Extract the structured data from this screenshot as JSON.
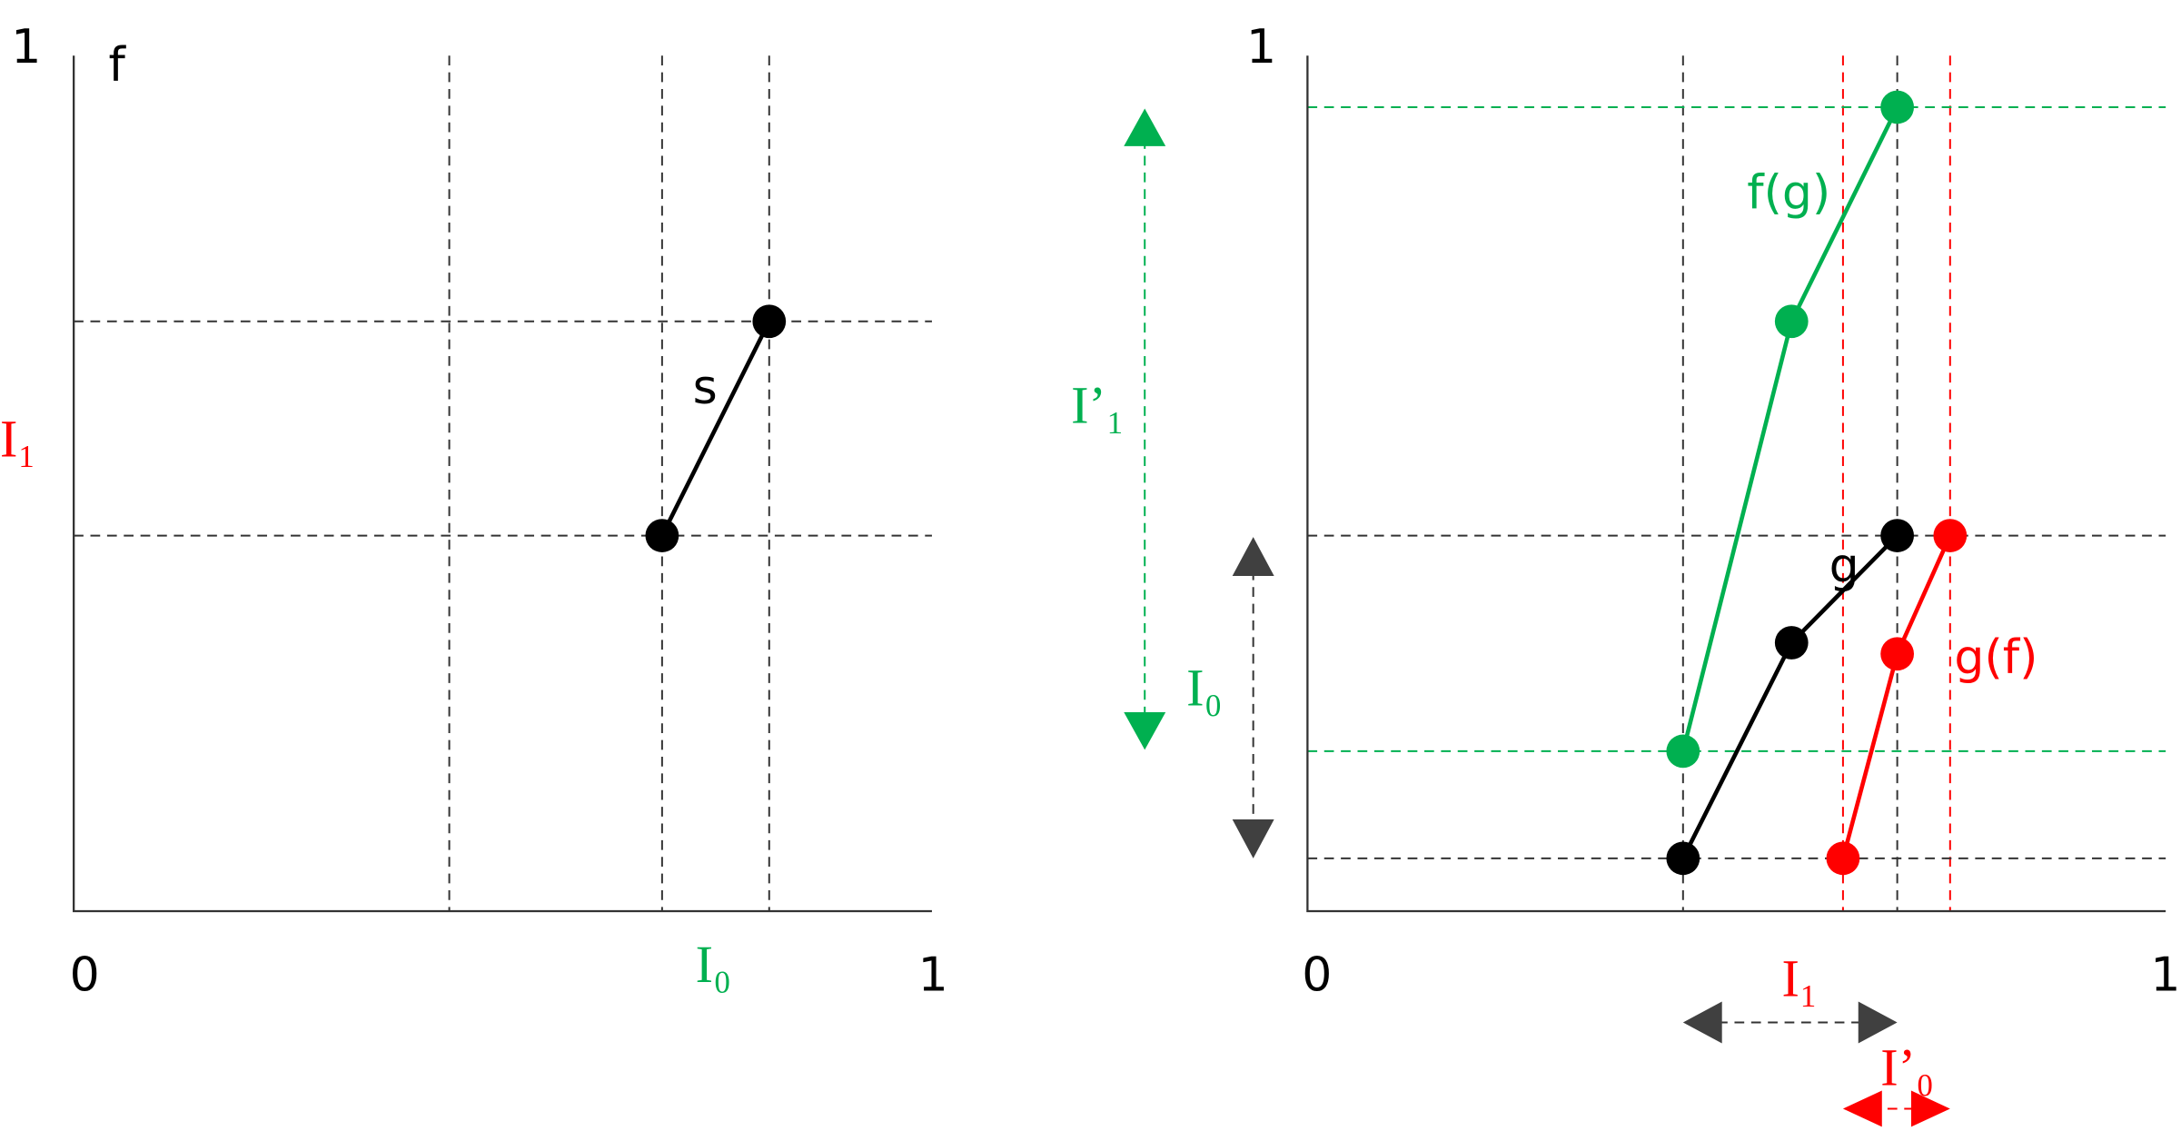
{
  "left_panel": {
    "y_max_label": "1",
    "function_label": "f",
    "x_min_label": "0",
    "x_max_label": "1",
    "x_interval_label": "I₀",
    "y_interval_label": "I₁",
    "segment_label": "s"
  },
  "right_panel": {
    "y_max_label": "1",
    "x_min_label": "0",
    "x_max_label": "1",
    "green_curve_label": "f(g)",
    "black_curve_label": "g",
    "red_curve_label": "g(f)",
    "green_interval_label": "I’₁",
    "grey_vertical_interval_label": "I₀",
    "grey_horizontal_interval_label": "I₁",
    "red_interval_label": "I’₀"
  }
}
